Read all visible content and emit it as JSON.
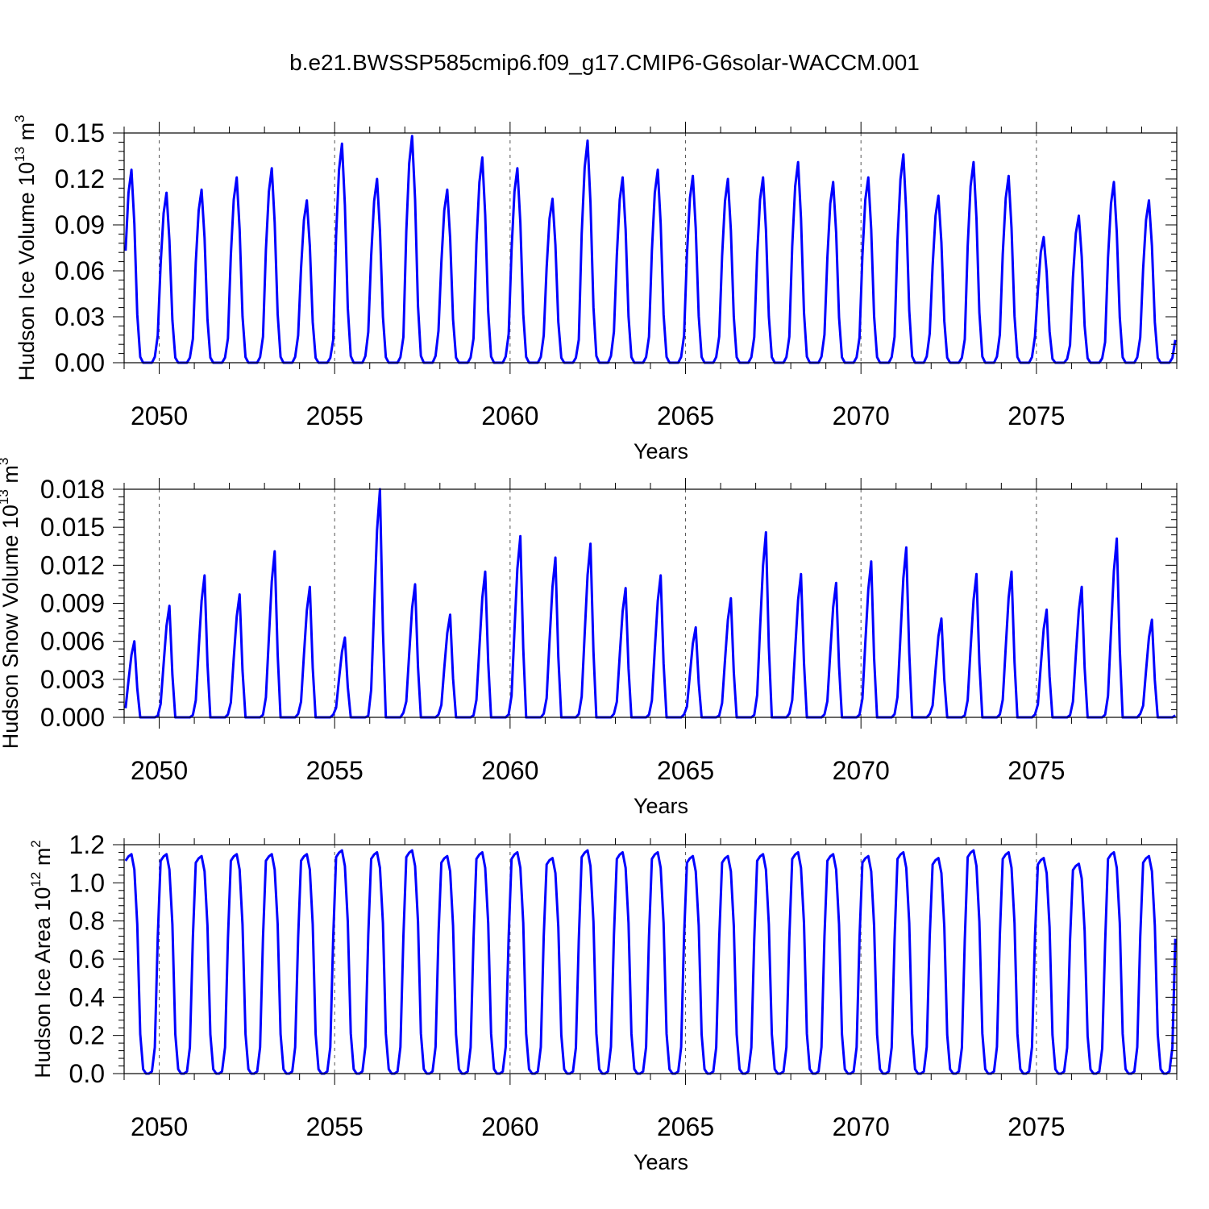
{
  "title": "b.e21.BWSSP585cmip6.f09_g17.CMIP6-G6solar-WACCM.001",
  "line_color": "#0000ff",
  "chart_data": [
    {
      "type": "line",
      "title": "",
      "xlabel": "Years",
      "ylabel": {
        "base": "Hudson Ice Volume 10",
        "exp": "13",
        "unit": " m",
        "unit_exp": "3"
      },
      "xlim": [
        2049.0,
        2079.0
      ],
      "ylim": [
        0.0,
        0.15
      ],
      "x_ticks": [
        2050,
        2055,
        2060,
        2065,
        2070,
        2075
      ],
      "x_tick_labels": [
        "2050",
        "2055",
        "2060",
        "2065",
        "2070",
        "2075"
      ],
      "y_ticks": [
        0.0,
        0.03,
        0.06,
        0.09,
        0.12,
        0.15
      ],
      "y_tick_labels": [
        "0.00",
        "0.03",
        "0.06",
        "0.09",
        "0.12",
        "0.15"
      ],
      "grid": "dashed vertical lines at labeled years",
      "peaks": [
        0.126,
        0.111,
        0.113,
        0.121,
        0.127,
        0.106,
        0.143,
        0.12,
        0.148,
        0.113,
        0.134,
        0.127,
        0.107,
        0.145,
        0.121,
        0.126,
        0.122,
        0.12,
        0.121,
        0.131,
        0.118,
        0.121,
        0.136,
        0.109,
        0.131,
        0.122,
        0.082,
        0.096,
        0.118,
        0.106
      ]
    },
    {
      "type": "line",
      "title": "",
      "xlabel": "Years",
      "ylabel": {
        "base": "Hudson Snow Volume 10",
        "exp": "13",
        "unit": " m",
        "unit_exp": "3"
      },
      "xlim": [
        2049.0,
        2079.0
      ],
      "ylim": [
        0.0,
        0.018
      ],
      "x_ticks": [
        2050,
        2055,
        2060,
        2065,
        2070,
        2075
      ],
      "x_tick_labels": [
        "2050",
        "2055",
        "2060",
        "2065",
        "2070",
        "2075"
      ],
      "y_ticks": [
        0.0,
        0.003,
        0.006,
        0.009,
        0.012,
        0.015,
        0.018
      ],
      "y_tick_labels": [
        "0.000",
        "0.003",
        "0.006",
        "0.009",
        "0.012",
        "0.015",
        "0.018"
      ],
      "grid": "dashed vertical lines at labeled years",
      "peaks": [
        0.006,
        0.0088,
        0.0112,
        0.0097,
        0.0131,
        0.0103,
        0.0063,
        0.018,
        0.0105,
        0.0081,
        0.0115,
        0.0143,
        0.0126,
        0.0137,
        0.0102,
        0.0112,
        0.0071,
        0.0094,
        0.0146,
        0.0113,
        0.0106,
        0.0123,
        0.0134,
        0.0078,
        0.0113,
        0.0115,
        0.0085,
        0.0103,
        0.0141,
        0.0077
      ]
    },
    {
      "type": "line",
      "title": "",
      "xlabel": "Years",
      "ylabel": {
        "base": "Hudson Ice Area 10",
        "exp": "12",
        "unit": " m",
        "unit_exp": "2"
      },
      "xlim": [
        2049.0,
        2079.0
      ],
      "ylim": [
        0.0,
        1.2
      ],
      "x_ticks": [
        2050,
        2055,
        2060,
        2065,
        2070,
        2075
      ],
      "x_tick_labels": [
        "2050",
        "2055",
        "2060",
        "2065",
        "2070",
        "2075"
      ],
      "y_ticks": [
        0.0,
        0.2,
        0.4,
        0.6,
        0.8,
        1.0,
        1.2
      ],
      "y_tick_labels": [
        "0.0",
        "0.2",
        "0.4",
        "0.6",
        "0.8",
        "1.0",
        "1.2"
      ],
      "grid": "dashed vertical lines at labeled years",
      "peaks": [
        1.15,
        1.15,
        1.14,
        1.15,
        1.15,
        1.15,
        1.17,
        1.16,
        1.17,
        1.14,
        1.16,
        1.16,
        1.13,
        1.17,
        1.16,
        1.16,
        1.14,
        1.14,
        1.15,
        1.16,
        1.15,
        1.14,
        1.16,
        1.13,
        1.17,
        1.16,
        1.13,
        1.1,
        1.16,
        1.14
      ]
    }
  ]
}
